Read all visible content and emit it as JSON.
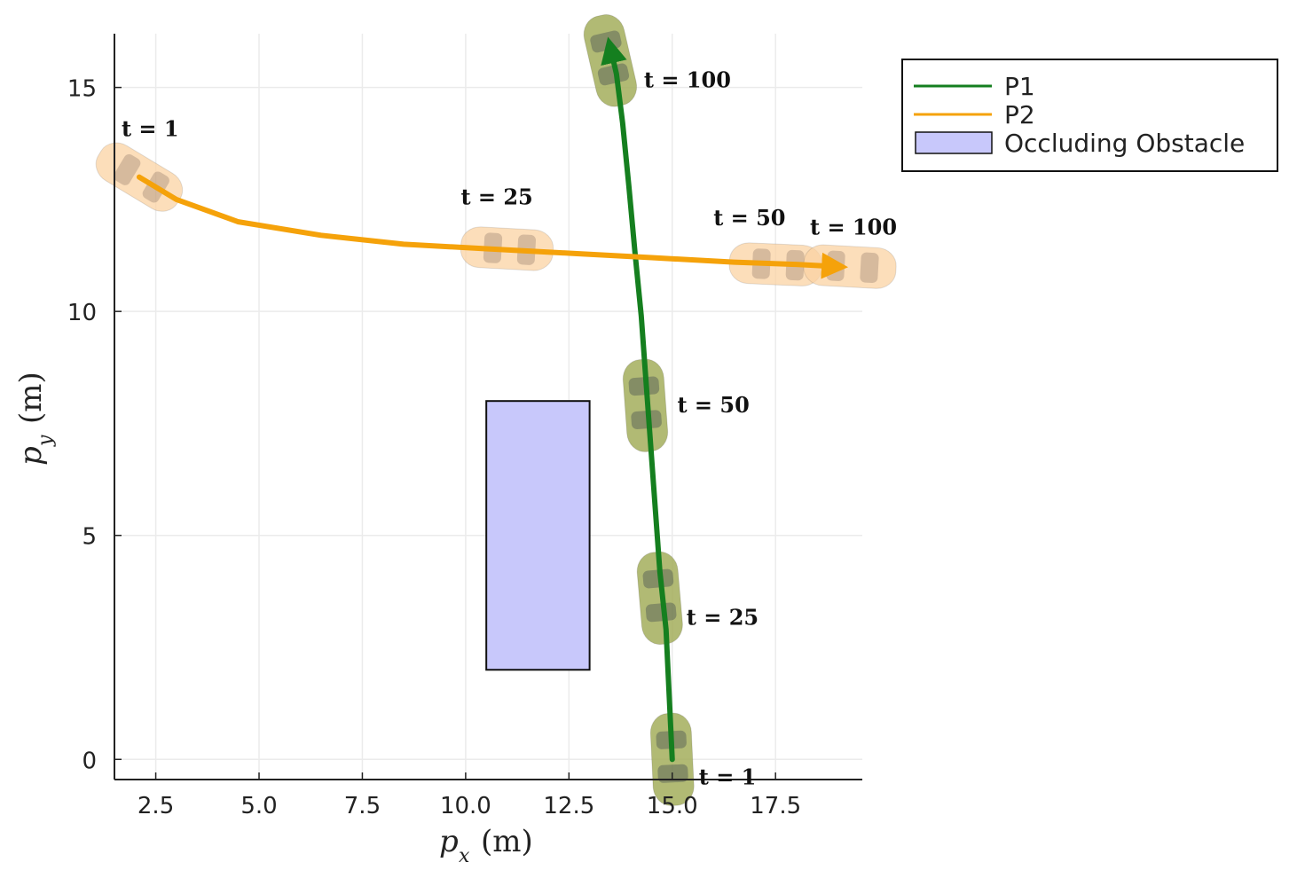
{
  "chart_data": {
    "type": "line",
    "xlabel_symbol": "p",
    "xlabel_sub": "x",
    "xlabel_unit": "(m)",
    "ylabel_symbol": "p",
    "ylabel_sub": "y",
    "ylabel_unit": "(m)",
    "xlim": [
      1.5,
      19.6
    ],
    "ylim": [
      -0.45,
      16.2
    ],
    "xticks": [
      2.5,
      5.0,
      7.5,
      10.0,
      12.5,
      15.0,
      17.5
    ],
    "xtick_labels": [
      "2.5",
      "5.0",
      "7.5",
      "10.0",
      "12.5",
      "15.0",
      "17.5"
    ],
    "yticks": [
      0,
      5,
      10,
      15
    ],
    "ytick_labels": [
      "0",
      "5",
      "10",
      "15"
    ],
    "grid": true,
    "legend_position": "top-right-outside",
    "series": [
      {
        "name": "P1",
        "color": "#157f1f",
        "x": [
          15.0,
          14.85,
          14.7,
          14.55,
          14.4,
          14.25,
          14.1,
          13.95,
          13.8,
          13.65,
          13.5
        ],
        "y": [
          0.0,
          2.9,
          4.2,
          6.1,
          8.0,
          9.9,
          11.3,
          12.8,
          14.2,
          15.3,
          15.9
        ],
        "annotations": [
          {
            "x": 15.0,
            "y": 0.0,
            "label": "t = 1"
          },
          {
            "x": 14.7,
            "y": 3.6,
            "label": "t = 25"
          },
          {
            "x": 14.35,
            "y": 7.9,
            "label": "t = 50"
          },
          {
            "x": 13.5,
            "y": 15.6,
            "label": "t = 100"
          }
        ]
      },
      {
        "name": "P2",
        "color": "#f5a20a",
        "x": [
          2.1,
          3.0,
          4.5,
          6.5,
          8.5,
          10.5,
          12.5,
          14.5,
          16.5,
          18.0,
          19.0
        ],
        "y": [
          13.0,
          12.5,
          12.0,
          11.7,
          11.5,
          11.4,
          11.3,
          11.2,
          11.1,
          11.05,
          11.0
        ],
        "annotations": [
          {
            "x": 2.1,
            "y": 13.0,
            "label": "t = 1"
          },
          {
            "x": 11.0,
            "y": 11.4,
            "label": "t = 25"
          },
          {
            "x": 17.5,
            "y": 11.05,
            "label": "t = 50"
          },
          {
            "x": 19.3,
            "y": 11.0,
            "label": "t = 100"
          }
        ]
      }
    ],
    "obstacle": {
      "name": "Occluding Obstacle",
      "color": "#c8c8fb",
      "x": [
        10.5,
        13.0
      ],
      "y": [
        2.0,
        8.0
      ]
    }
  }
}
